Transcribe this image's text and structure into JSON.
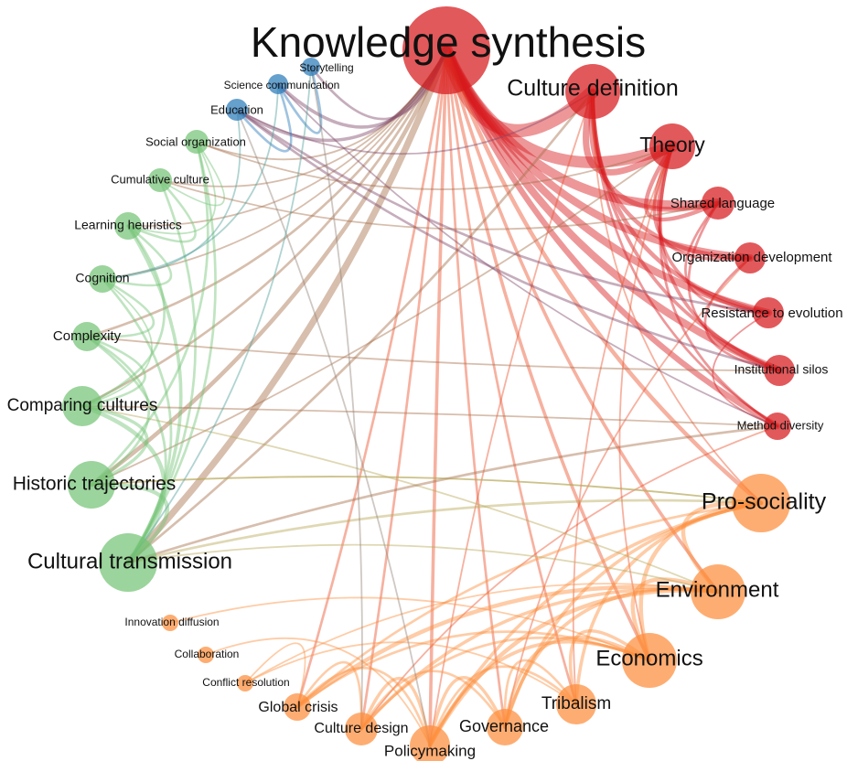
{
  "clusters": {
    "red": {
      "color": "#d7191c"
    },
    "orange": {
      "color": "#fd8d3c"
    },
    "green": {
      "color": "#74c476"
    },
    "blue": {
      "color": "#2b7bba"
    }
  },
  "nodes": [
    {
      "id": "knowledge-synthesis",
      "label": "Knowledge synthesis",
      "cluster": "red"
    },
    {
      "id": "culture-definition",
      "label": "Culture definition",
      "cluster": "red"
    },
    {
      "id": "theory",
      "label": "Theory",
      "cluster": "red"
    },
    {
      "id": "shared-language",
      "label": "Shared language",
      "cluster": "red"
    },
    {
      "id": "organization-development",
      "label": "Organization development",
      "cluster": "red"
    },
    {
      "id": "resistance-to-evolution",
      "label": "Resistance to evolution",
      "cluster": "red"
    },
    {
      "id": "institutional-silos",
      "label": "Institutional silos",
      "cluster": "red"
    },
    {
      "id": "method-diversity",
      "label": "Method diversity",
      "cluster": "red"
    },
    {
      "id": "pro-sociality",
      "label": "Pro-sociality",
      "cluster": "orange"
    },
    {
      "id": "environment",
      "label": "Environment",
      "cluster": "orange"
    },
    {
      "id": "economics",
      "label": "Economics",
      "cluster": "orange"
    },
    {
      "id": "tribalism",
      "label": "Tribalism",
      "cluster": "orange"
    },
    {
      "id": "governance",
      "label": "Governance",
      "cluster": "orange"
    },
    {
      "id": "policymaking",
      "label": "Policymaking",
      "cluster": "orange"
    },
    {
      "id": "culture-design",
      "label": "Culture design",
      "cluster": "orange"
    },
    {
      "id": "global-crisis",
      "label": "Global crisis",
      "cluster": "orange"
    },
    {
      "id": "conflict-resolution",
      "label": "Conflict resolution",
      "cluster": "orange"
    },
    {
      "id": "collaboration",
      "label": "Collaboration",
      "cluster": "orange"
    },
    {
      "id": "innovation-diffusion",
      "label": "Innovation diffusion",
      "cluster": "orange"
    },
    {
      "id": "cultural-transmission",
      "label": "Cultural transmission",
      "cluster": "green"
    },
    {
      "id": "historic-trajectories",
      "label": "Historic trajectories",
      "cluster": "green"
    },
    {
      "id": "comparing-cultures",
      "label": "Comparing cultures",
      "cluster": "green"
    },
    {
      "id": "complexity",
      "label": "Complexity",
      "cluster": "green"
    },
    {
      "id": "cognition",
      "label": "Cognition",
      "cluster": "green"
    },
    {
      "id": "learning-heuristics",
      "label": "Learning heuristics",
      "cluster": "green"
    },
    {
      "id": "cumulative-culture",
      "label": "Cumulative culture",
      "cluster": "green"
    },
    {
      "id": "social-organization",
      "label": "Social organization",
      "cluster": "green"
    },
    {
      "id": "education",
      "label": "Education",
      "cluster": "blue"
    },
    {
      "id": "science-communication",
      "label": "Science communication",
      "cluster": "blue"
    },
    {
      "id": "storytelling",
      "label": "Storytelling",
      "cluster": "blue"
    }
  ],
  "edges": [
    {
      "a": "knowledge-synthesis",
      "b": "culture-definition",
      "w": 16
    },
    {
      "a": "knowledge-synthesis",
      "b": "theory",
      "w": 14
    },
    {
      "a": "knowledge-synthesis",
      "b": "shared-language",
      "w": 11
    },
    {
      "a": "knowledge-synthesis",
      "b": "organization-development",
      "w": 9
    },
    {
      "a": "knowledge-synthesis",
      "b": "resistance-to-evolution",
      "w": 9
    },
    {
      "a": "knowledge-synthesis",
      "b": "institutional-silos",
      "w": 9
    },
    {
      "a": "knowledge-synthesis",
      "b": "method-diversity",
      "w": 7
    },
    {
      "a": "knowledge-synthesis",
      "b": "cultural-transmission",
      "w": 8
    },
    {
      "a": "knowledge-synthesis",
      "b": "pro-sociality",
      "w": 5
    },
    {
      "a": "knowledge-synthesis",
      "b": "environment",
      "w": 4
    },
    {
      "a": "knowledge-synthesis",
      "b": "economics",
      "w": 4
    },
    {
      "a": "knowledge-synthesis",
      "b": "tribalism",
      "w": 3
    },
    {
      "a": "knowledge-synthesis",
      "b": "governance",
      "w": 3
    },
    {
      "a": "knowledge-synthesis",
      "b": "policymaking",
      "w": 4
    },
    {
      "a": "knowledge-synthesis",
      "b": "culture-design",
      "w": 3
    },
    {
      "a": "knowledge-synthesis",
      "b": "global-crisis",
      "w": 3
    },
    {
      "a": "knowledge-synthesis",
      "b": "historic-trajectories",
      "w": 5
    },
    {
      "a": "knowledge-synthesis",
      "b": "comparing-cultures",
      "w": 3
    },
    {
      "a": "knowledge-synthesis",
      "b": "complexity",
      "w": 3
    },
    {
      "a": "knowledge-synthesis",
      "b": "cognition",
      "w": 2
    },
    {
      "a": "knowledge-synthesis",
      "b": "learning-heuristics",
      "w": 2
    },
    {
      "a": "knowledge-synthesis",
      "b": "cumulative-culture",
      "w": 2
    },
    {
      "a": "knowledge-synthesis",
      "b": "social-organization",
      "w": 2
    },
    {
      "a": "knowledge-synthesis",
      "b": "education",
      "w": 4
    },
    {
      "a": "knowledge-synthesis",
      "b": "science-communication",
      "w": 4
    },
    {
      "a": "knowledge-synthesis",
      "b": "storytelling",
      "w": 3
    },
    {
      "a": "culture-definition",
      "b": "theory",
      "w": 8
    },
    {
      "a": "culture-definition",
      "b": "shared-language",
      "w": 6
    },
    {
      "a": "culture-definition",
      "b": "organization-development",
      "w": 5
    },
    {
      "a": "culture-definition",
      "b": "resistance-to-evolution",
      "w": 5
    },
    {
      "a": "culture-definition",
      "b": "institutional-silos",
      "w": 4
    },
    {
      "a": "culture-definition",
      "b": "method-diversity",
      "w": 3
    },
    {
      "a": "culture-definition",
      "b": "cultural-transmission",
      "w": 3
    },
    {
      "a": "culture-definition",
      "b": "pro-sociality",
      "w": 2
    },
    {
      "a": "culture-definition",
      "b": "policymaking",
      "w": 2
    },
    {
      "a": "culture-definition",
      "b": "education",
      "w": 2
    },
    {
      "a": "theory",
      "b": "shared-language",
      "w": 5
    },
    {
      "a": "theory",
      "b": "organization-development",
      "w": 4
    },
    {
      "a": "theory",
      "b": "resistance-to-evolution",
      "w": 4
    },
    {
      "a": "theory",
      "b": "institutional-silos",
      "w": 4
    },
    {
      "a": "theory",
      "b": "method-diversity",
      "w": 3
    },
    {
      "a": "theory",
      "b": "economics",
      "w": 2
    },
    {
      "a": "theory",
      "b": "tribalism",
      "w": 2
    },
    {
      "a": "theory",
      "b": "historic-trajectories",
      "w": 2
    },
    {
      "a": "shared-language",
      "b": "resistance-to-evolution",
      "w": 3
    },
    {
      "a": "shared-language",
      "b": "institutional-silos",
      "w": 3
    },
    {
      "a": "organization-development",
      "b": "institutional-silos",
      "w": 3
    },
    {
      "a": "organization-development",
      "b": "governance",
      "w": 2
    },
    {
      "a": "resistance-to-evolution",
      "b": "method-diversity",
      "w": 2
    },
    {
      "a": "institutional-silos",
      "b": "education",
      "w": 3
    },
    {
      "a": "method-diversity",
      "b": "culture-design",
      "w": 2
    },
    {
      "a": "pro-sociality",
      "b": "environment",
      "w": 5
    },
    {
      "a": "pro-sociality",
      "b": "economics",
      "w": 5
    },
    {
      "a": "pro-sociality",
      "b": "tribalism",
      "w": 4
    },
    {
      "a": "pro-sociality",
      "b": "governance",
      "w": 4
    },
    {
      "a": "pro-sociality",
      "b": "policymaking",
      "w": 4
    },
    {
      "a": "pro-sociality",
      "b": "global-crisis",
      "w": 3
    },
    {
      "a": "pro-sociality",
      "b": "cultural-transmission",
      "w": 3
    },
    {
      "a": "pro-sociality",
      "b": "historic-trajectories",
      "w": 2
    },
    {
      "a": "environment",
      "b": "economics",
      "w": 5
    },
    {
      "a": "environment",
      "b": "governance",
      "w": 4
    },
    {
      "a": "environment",
      "b": "policymaking",
      "w": 5
    },
    {
      "a": "environment",
      "b": "culture-design",
      "w": 4
    },
    {
      "a": "environment",
      "b": "global-crisis",
      "w": 5
    },
    {
      "a": "environment",
      "b": "conflict-resolution",
      "w": 2
    },
    {
      "a": "environment",
      "b": "comparing-cultures",
      "w": 2
    },
    {
      "a": "economics",
      "b": "tribalism",
      "w": 4
    },
    {
      "a": "economics",
      "b": "governance",
      "w": 4
    },
    {
      "a": "economics",
      "b": "policymaking",
      "w": 4
    },
    {
      "a": "economics",
      "b": "culture-design",
      "w": 3
    },
    {
      "a": "economics",
      "b": "global-crisis",
      "w": 3
    },
    {
      "a": "tribalism",
      "b": "governance",
      "w": 3
    },
    {
      "a": "tribalism",
      "b": "policymaking",
      "w": 3
    },
    {
      "a": "tribalism",
      "b": "conflict-resolution",
      "w": 2
    },
    {
      "a": "governance",
      "b": "policymaking",
      "w": 4
    },
    {
      "a": "governance",
      "b": "culture-design",
      "w": 3
    },
    {
      "a": "policymaking",
      "b": "culture-design",
      "w": 4
    },
    {
      "a": "policymaking",
      "b": "global-crisis",
      "w": 3
    },
    {
      "a": "culture-design",
      "b": "global-crisis",
      "w": 3
    },
    {
      "a": "global-crisis",
      "b": "conflict-resolution",
      "w": 2
    },
    {
      "a": "collaboration",
      "b": "policymaking",
      "w": 2
    },
    {
      "a": "innovation-diffusion",
      "b": "economics",
      "w": 2
    },
    {
      "a": "cultural-transmission",
      "b": "historic-trajectories",
      "w": 5
    },
    {
      "a": "cultural-transmission",
      "b": "comparing-cultures",
      "w": 5
    },
    {
      "a": "cultural-transmission",
      "b": "complexity",
      "w": 3
    },
    {
      "a": "cultural-transmission",
      "b": "cognition",
      "w": 3
    },
    {
      "a": "cultural-transmission",
      "b": "learning-heuristics",
      "w": 4
    },
    {
      "a": "cultural-transmission",
      "b": "cumulative-culture",
      "w": 3
    },
    {
      "a": "cultural-transmission",
      "b": "social-organization",
      "w": 3
    },
    {
      "a": "cultural-transmission",
      "b": "method-diversity",
      "w": 3
    },
    {
      "a": "cultural-transmission",
      "b": "environment",
      "w": 2
    },
    {
      "a": "historic-trajectories",
      "b": "comparing-cultures",
      "w": 4
    },
    {
      "a": "historic-trajectories",
      "b": "complexity",
      "w": 3
    },
    {
      "a": "historic-trajectories",
      "b": "social-organization",
      "w": 3
    },
    {
      "a": "historic-trajectories",
      "b": "pro-sociality",
      "w": 2
    },
    {
      "a": "comparing-cultures",
      "b": "complexity",
      "w": 3
    },
    {
      "a": "comparing-cultures",
      "b": "cognition",
      "w": 2
    },
    {
      "a": "comparing-cultures",
      "b": "method-diversity",
      "w": 2
    },
    {
      "a": "comparing-cultures",
      "b": "learning-heuristics",
      "w": 3
    },
    {
      "a": "complexity",
      "b": "cognition",
      "w": 3
    },
    {
      "a": "complexity",
      "b": "institutional-silos",
      "w": 2
    },
    {
      "a": "cognition",
      "b": "learning-heuristics",
      "w": 3
    },
    {
      "a": "cognition",
      "b": "education",
      "w": 2
    },
    {
      "a": "learning-heuristics",
      "b": "cumulative-culture",
      "w": 3
    },
    {
      "a": "learning-heuristics",
      "b": "social-organization",
      "w": 2
    },
    {
      "a": "cumulative-culture",
      "b": "social-organization",
      "w": 2
    },
    {
      "a": "cumulative-culture",
      "b": "shared-language",
      "w": 2
    },
    {
      "a": "social-organization",
      "b": "theory",
      "w": 2
    },
    {
      "a": "education",
      "b": "science-communication",
      "w": 3
    },
    {
      "a": "education",
      "b": "resistance-to-evolution",
      "w": 3
    },
    {
      "a": "education",
      "b": "policymaking",
      "w": 2
    },
    {
      "a": "science-communication",
      "b": "storytelling",
      "w": 3
    },
    {
      "a": "science-communication",
      "b": "cognition",
      "w": 2
    },
    {
      "a": "science-communication",
      "b": "method-diversity",
      "w": 2
    },
    {
      "a": "storytelling",
      "b": "cultural-transmission",
      "w": 2
    },
    {
      "a": "storytelling",
      "b": "culture-design",
      "w": 2
    }
  ]
}
